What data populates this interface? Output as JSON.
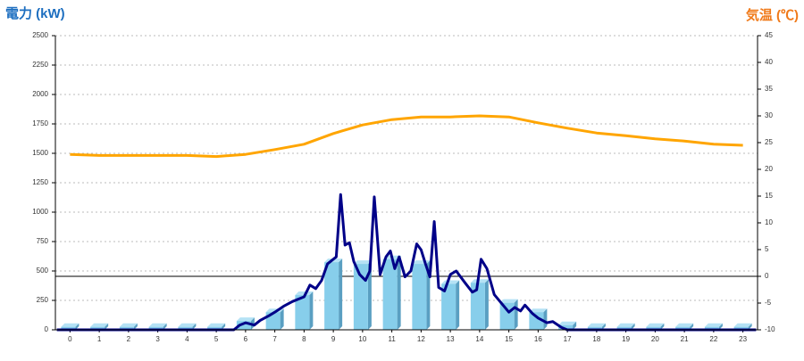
{
  "chart_data": {
    "type": "combo",
    "y_title": "電力 (kW)",
    "y2_title": "気温 (℃)",
    "categories": [
      "0",
      "1",
      "2",
      "3",
      "4",
      "5",
      "6",
      "7",
      "8",
      "9",
      "10",
      "11",
      "12",
      "13",
      "14",
      "15",
      "16",
      "17",
      "18",
      "19",
      "20",
      "21",
      "22",
      "23"
    ],
    "series": [
      {
        "type": "bar",
        "color": "#87ceeb",
        "values": [
          25,
          25,
          25,
          25,
          25,
          25,
          75,
          150,
          295,
          575,
          560,
          600,
          560,
          390,
          400,
          230,
          150,
          40,
          25,
          25,
          25,
          25,
          25,
          25
        ]
      },
      {
        "type": "line",
        "color": "#000088",
        "x": [
          -0.45,
          5.5,
          5.6,
          5.8,
          6.0,
          6.3,
          6.5,
          6.8,
          7.0,
          7.3,
          7.6,
          8.0,
          8.2,
          8.4,
          8.6,
          8.8,
          9.0,
          9.1,
          9.25,
          9.4,
          9.55,
          9.7,
          9.9,
          10.1,
          10.25,
          10.4,
          10.6,
          10.8,
          10.95,
          11.1,
          11.25,
          11.45,
          11.65,
          11.85,
          12.0,
          12.15,
          12.3,
          12.45,
          12.6,
          12.8,
          13.0,
          13.2,
          13.5,
          13.75,
          13.9,
          14.05,
          14.25,
          14.5,
          14.8,
          15.0,
          15.2,
          15.4,
          15.55,
          15.8,
          16.0,
          16.3,
          16.5,
          16.8,
          17.0,
          23.45
        ],
        "values": [
          0,
          0,
          0,
          40,
          60,
          40,
          80,
          120,
          150,
          200,
          240,
          280,
          380,
          350,
          420,
          560,
          600,
          620,
          1150,
          720,
          740,
          580,
          470,
          420,
          500,
          1130,
          470,
          620,
          670,
          520,
          620,
          450,
          500,
          730,
          680,
          560,
          450,
          920,
          360,
          330,
          470,
          500,
          400,
          320,
          340,
          600,
          520,
          300,
          210,
          150,
          190,
          160,
          210,
          140,
          100,
          60,
          70,
          20,
          0,
          0
        ]
      },
      {
        "type": "line",
        "axis": "y2",
        "color": "#ffa500",
        "values": [
          22.8,
          22.6,
          22.6,
          22.6,
          22.6,
          22.4,
          22.8,
          23.7,
          24.7,
          26.7,
          28.3,
          29.3,
          29.8,
          29.8,
          30,
          29.8,
          28.7,
          27.7,
          26.8,
          26.3,
          25.7,
          25.3,
          24.7,
          24.5
        ]
      }
    ],
    "ylim": [
      0,
      2500
    ],
    "yticks": [
      0,
      250,
      500,
      750,
      1000,
      1250,
      1500,
      1750,
      2000,
      2250,
      2500
    ],
    "y2lim": [
      -10,
      45
    ],
    "y2ticks": [
      -10,
      -5,
      0,
      5,
      10,
      15,
      20,
      25,
      30,
      35,
      40,
      45
    ],
    "y2_reference": 0,
    "grid": true
  }
}
